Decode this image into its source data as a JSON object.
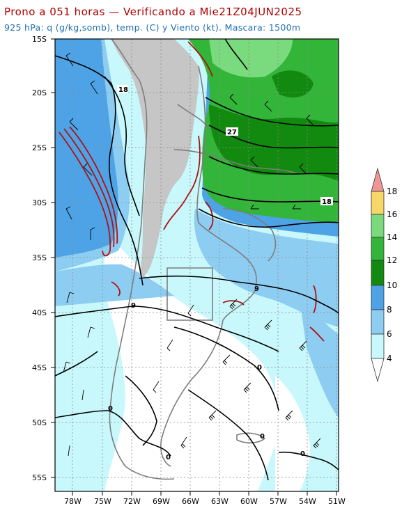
{
  "header": {
    "title": "Prono a 051 horas — Verificando a Mie21Z04JUN2025",
    "subtitle": "925 hPa: q (g/kg,somb), temp. (C) y Viento (kt). Mascara: 1500m"
  },
  "axes": {
    "lat_labels": [
      "15S",
      "20S",
      "25S",
      "30S",
      "35S",
      "40S",
      "45S",
      "50S",
      "55S"
    ],
    "lon_labels": [
      "78W",
      "75W",
      "72W",
      "69W",
      "66W",
      "63W",
      "60W",
      "57W",
      "54W",
      "51W"
    ]
  },
  "colorbar": {
    "levels": [
      "4",
      "6",
      "8",
      "10",
      "12",
      "14",
      "16",
      "18"
    ],
    "colors": [
      "#ffffff",
      "#c8f8fb",
      "#8ecdf2",
      "#4ea3e6",
      "#12890f",
      "#33b53a",
      "#7ada7e",
      "#f7d76a",
      "#f09595"
    ]
  },
  "contour_labels": [
    "18",
    "27",
    "18",
    "9",
    "9",
    "0",
    "0",
    "0",
    "0",
    "0"
  ],
  "map_colors": {
    "mask": "#c6c6c6",
    "coast": "#7d7d7d",
    "isotherm": "#000000",
    "moisture_edge": "#b01010"
  }
}
